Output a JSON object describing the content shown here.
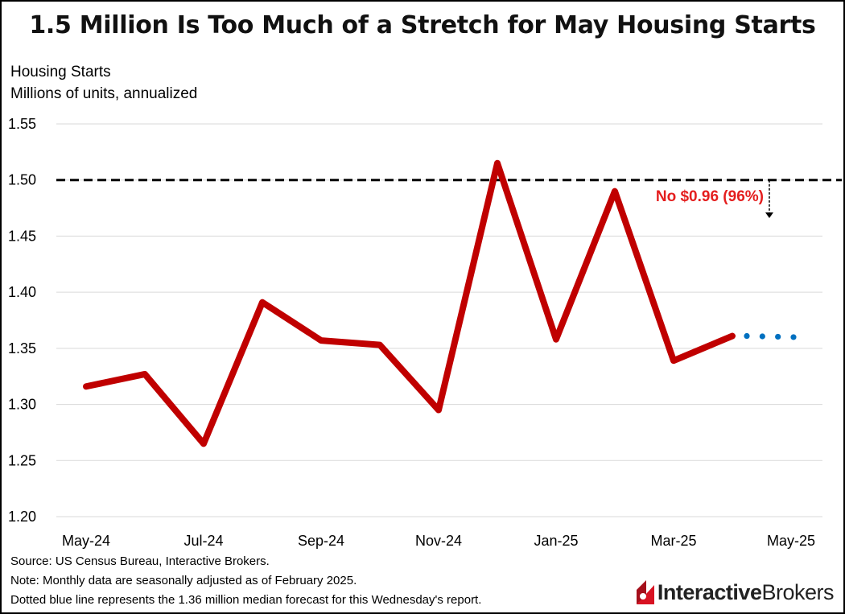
{
  "title": "1.5 Million Is Too Much of a Stretch for May Housing Starts",
  "y_axis_title": [
    "Housing Starts",
    "Millions of units, annualized"
  ],
  "annotation": "No $0.96 (96%)",
  "footnotes": {
    "source": "Source: US Census Bureau, Interactive Brokers.",
    "note": "Note: Monthly data are seasonally adjusted as of February 2025.",
    "dotted": "Dotted blue line represents the 1.36 million median forecast for this Wednesday's report."
  },
  "logo": {
    "part1": "Interactive",
    "part2": "Brokers"
  },
  "colors": {
    "actual": "#c00000",
    "forecast": "#0070c0",
    "annotation": "#e41e1e",
    "grid": "#d9d9d9",
    "threshold": "#000000"
  },
  "chart_data": {
    "type": "line",
    "title": "1.5 Million Is Too Much of a Stretch for May Housing Starts",
    "ylabel": "Housing Starts, Millions of units, annualized",
    "ylim": [
      1.2,
      1.55
    ],
    "yticks": [
      "1.20",
      "1.25",
      "1.30",
      "1.35",
      "1.40",
      "1.45",
      "1.50",
      "1.55"
    ],
    "grid": true,
    "categories": [
      "May-24",
      "Jun-24",
      "Jul-24",
      "Aug-24",
      "Sep-24",
      "Oct-24",
      "Nov-24",
      "Dec-24",
      "Jan-25",
      "Feb-25",
      "Mar-25",
      "Apr-25",
      "May-25"
    ],
    "xtick_labels": [
      "May-24",
      "Jul-24",
      "Sep-24",
      "Nov-24",
      "Jan-25",
      "Mar-25",
      "May-25"
    ],
    "series": [
      {
        "name": "Housing Starts",
        "style": "solid",
        "values": [
          1.316,
          1.327,
          1.265,
          1.391,
          1.357,
          1.353,
          1.295,
          1.515,
          1.358,
          1.49,
          1.339,
          1.361,
          null
        ]
      },
      {
        "name": "Median forecast",
        "style": "dotted",
        "values": [
          null,
          null,
          null,
          null,
          null,
          null,
          null,
          null,
          null,
          null,
          null,
          1.361,
          1.36
        ]
      }
    ],
    "threshold": {
      "value": 1.5,
      "style": "dashed"
    },
    "annotations": [
      {
        "text": "No $0.96 (96%)",
        "anchor_value": 1.5,
        "direction": "down"
      }
    ]
  }
}
